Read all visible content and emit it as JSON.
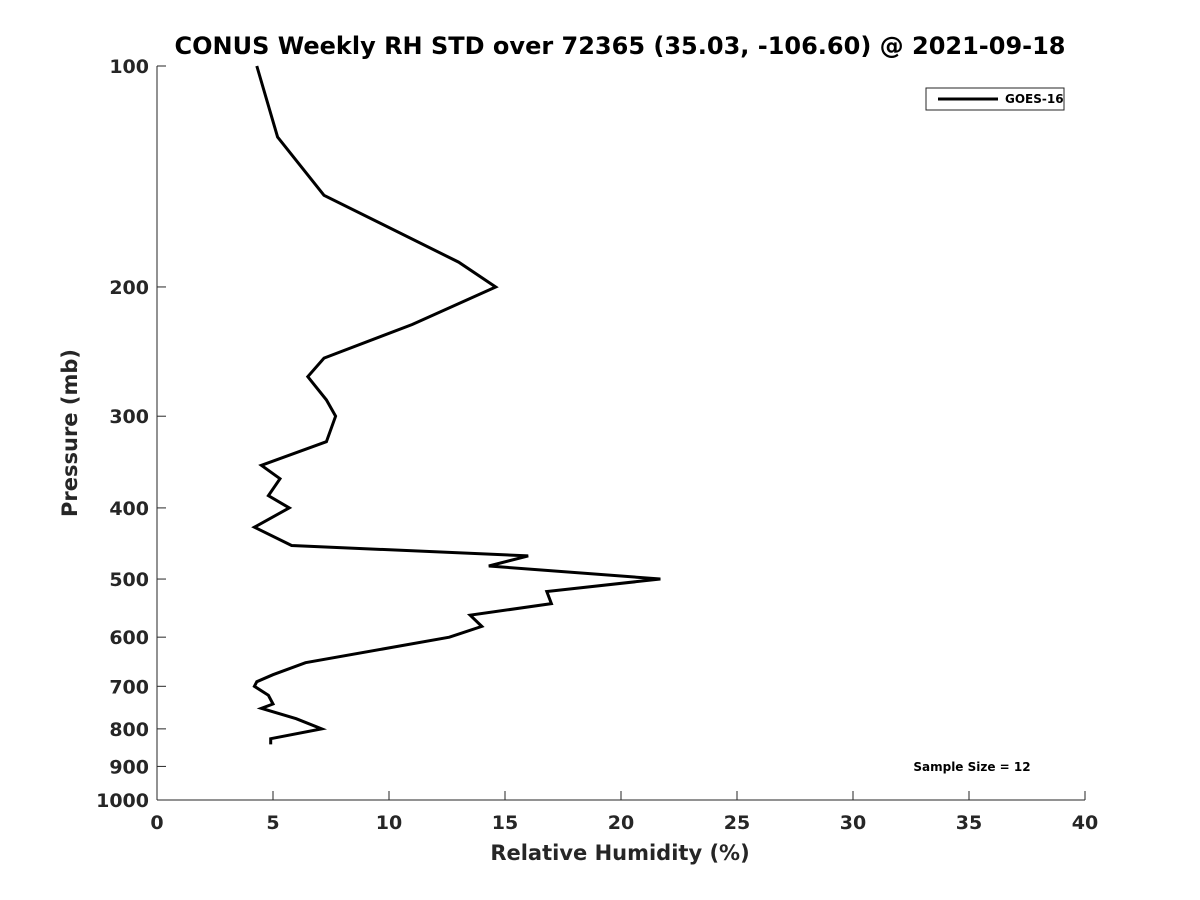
{
  "chart_data": {
    "type": "line",
    "title": "CONUS Weekly RH STD over 72365 (35.03, -106.60) @ 2021-09-18",
    "xlabel": "Relative Humidity (%)",
    "ylabel": "Pressure (mb)",
    "xlim": [
      0,
      40
    ],
    "ylim": [
      100,
      1000
    ],
    "y_scale": "log",
    "y_reversed": true,
    "x_ticks": [
      0,
      5,
      10,
      15,
      20,
      25,
      30,
      35,
      40
    ],
    "x_tick_labels": [
      "0",
      "5",
      "10",
      "15",
      "20",
      "25",
      "30",
      "35",
      "40"
    ],
    "y_ticks": [
      100,
      200,
      300,
      400,
      500,
      600,
      700,
      800,
      900,
      1000
    ],
    "y_tick_labels": [
      "100",
      "200",
      "300",
      "400",
      "500",
      "600",
      "700",
      "800",
      "900",
      "1000"
    ],
    "grid": false,
    "legend_position": "top-right",
    "annotation": "Sample Size = 12",
    "series": [
      {
        "name": "GOES-16",
        "color": "#000000",
        "points": [
          {
            "x": 4.3,
            "p": 100
          },
          {
            "x": 5.2,
            "p": 125
          },
          {
            "x": 7.2,
            "p": 150
          },
          {
            "x": 13.0,
            "p": 185
          },
          {
            "x": 14.6,
            "p": 200
          },
          {
            "x": 11.0,
            "p": 225
          },
          {
            "x": 7.2,
            "p": 250
          },
          {
            "x": 6.5,
            "p": 265
          },
          {
            "x": 7.3,
            "p": 285
          },
          {
            "x": 7.7,
            "p": 300
          },
          {
            "x": 7.3,
            "p": 325
          },
          {
            "x": 4.5,
            "p": 350
          },
          {
            "x": 5.3,
            "p": 365
          },
          {
            "x": 4.8,
            "p": 385
          },
          {
            "x": 5.7,
            "p": 400
          },
          {
            "x": 4.2,
            "p": 425
          },
          {
            "x": 5.8,
            "p": 450
          },
          {
            "x": 16.0,
            "p": 465
          },
          {
            "x": 14.3,
            "p": 480
          },
          {
            "x": 21.7,
            "p": 500
          },
          {
            "x": 16.8,
            "p": 520
          },
          {
            "x": 17.0,
            "p": 540
          },
          {
            "x": 13.5,
            "p": 560
          },
          {
            "x": 14.0,
            "p": 580
          },
          {
            "x": 12.6,
            "p": 600
          },
          {
            "x": 6.4,
            "p": 650
          },
          {
            "x": 5.0,
            "p": 675
          },
          {
            "x": 4.3,
            "p": 690
          },
          {
            "x": 4.2,
            "p": 700
          },
          {
            "x": 4.8,
            "p": 720
          },
          {
            "x": 5.0,
            "p": 740
          },
          {
            "x": 4.5,
            "p": 750
          },
          {
            "x": 6.0,
            "p": 775
          },
          {
            "x": 7.1,
            "p": 800
          },
          {
            "x": 4.9,
            "p": 825
          },
          {
            "x": 4.9,
            "p": 840
          }
        ]
      }
    ]
  }
}
